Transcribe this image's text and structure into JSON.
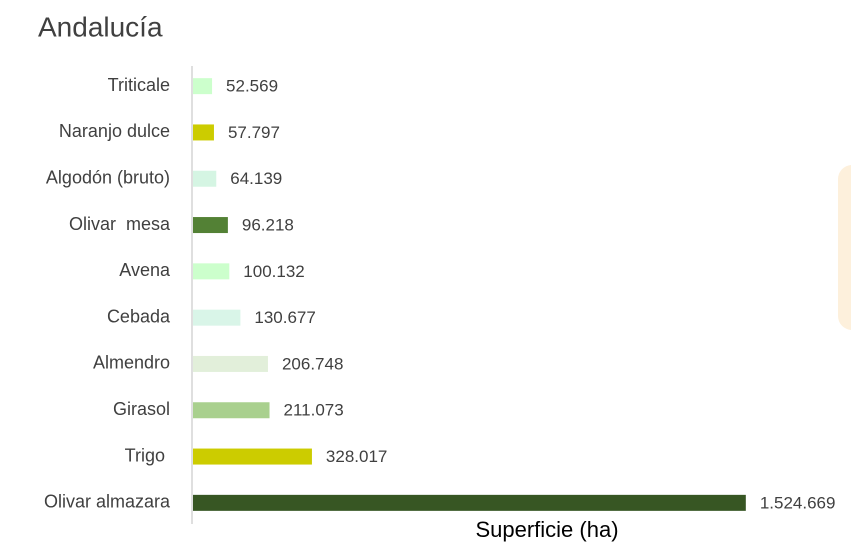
{
  "chart_data": {
    "type": "bar",
    "orientation": "horizontal",
    "title": "Andalucía",
    "x_label": "Superficie (ha)",
    "categories": [
      "Triticale",
      "Naranjo dulce",
      "Algodón (bruto)",
      "Olivar  mesa",
      "Avena",
      "Cebada",
      "Almendro",
      "Girasol",
      "Trigo ",
      "Olivar almazara"
    ],
    "values": [
      52569,
      57797,
      64139,
      96218,
      100132,
      130677,
      206748,
      211073,
      328017,
      1524669
    ],
    "value_labels": [
      "52.569",
      "57.797",
      "64.139",
      "96.218",
      "100.132",
      "130.677",
      "206.748",
      "211.073",
      "328.017",
      "1.524.669"
    ],
    "colors": [
      "#ccffcc",
      "#cccc00",
      "#d5f5e3",
      "#538135",
      "#ccffcc",
      "#d9f5e8",
      "#e2efda",
      "#a9d08e",
      "#cccc00",
      "#375623"
    ],
    "xlim": [
      0,
      1550000
    ]
  }
}
